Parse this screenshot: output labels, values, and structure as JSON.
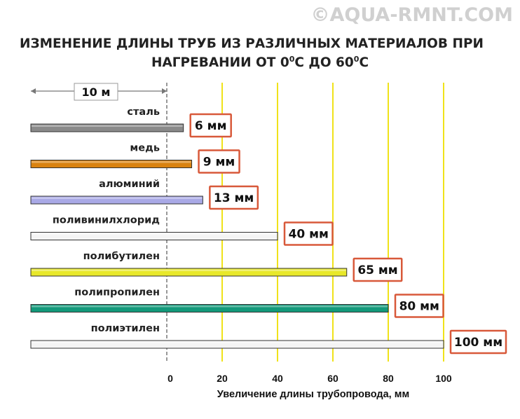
{
  "watermark": "©AQUA-RMNT.COM",
  "title": {
    "line1": "ИЗМЕНЕНИЕ ДЛИНЫ ТРУБ ИЗ РАЗЛИЧНЫХ МАТЕРИАЛОВ ПРИ",
    "line2_a": "НАГРЕВАНИИ ОТ  0",
    "line2_sup1": "0",
    "line2_b": "С  ДО  60",
    "line2_sup2": "0",
    "line2_c": "С"
  },
  "scale_marker": "10 м",
  "chart_data": {
    "type": "bar",
    "orientation": "horizontal",
    "categories": [
      "сталь",
      "медь",
      "алюминий",
      "поливинилхлорид",
      "полибутилен",
      "полипропилен",
      "полиэтилен"
    ],
    "values": [
      6,
      9,
      13,
      40,
      65,
      80,
      100
    ],
    "value_labels": [
      "6 мм",
      "9 мм",
      "13 мм",
      "40 мм",
      "65 мм",
      "80 мм",
      "100 мм"
    ],
    "colors": [
      "#8a8a8a",
      "#d9820f",
      "#a9a9e6",
      "#f4f4f4",
      "#e8e82a",
      "#13997a",
      "#f4f4f4"
    ],
    "xlabel": "Увеличение длины трубопровода, мм",
    "xticks": [
      0,
      20,
      40,
      60,
      80,
      100
    ],
    "xlim": [
      0,
      100
    ],
    "grid_color": "#f0e21a",
    "label_border_color": "#d8593a"
  }
}
